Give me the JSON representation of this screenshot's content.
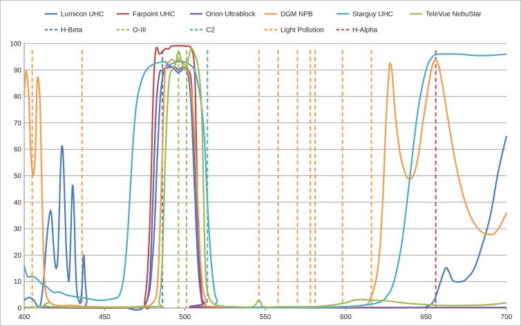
{
  "chart_data": {
    "type": "line",
    "title": "",
    "xlabel": "",
    "ylabel": "",
    "xlim": [
      400,
      700
    ],
    "ylim": [
      0,
      100
    ],
    "x_ticks": [
      "400",
      "450",
      "500",
      "550",
      "600",
      "650",
      "700"
    ],
    "y_ticks": [
      "0",
      "10",
      "20",
      "30",
      "40",
      "50",
      "60",
      "70",
      "80",
      "90",
      "100"
    ],
    "grid": "horizontal",
    "legend_position": "top",
    "series": [
      {
        "name": "Lumicon UHC",
        "color": "#4a7ebb",
        "dash": "solid",
        "points": [
          [
            400,
            3
          ],
          [
            403,
            4
          ],
          [
            406,
            3
          ],
          [
            408,
            1
          ],
          [
            410,
            1
          ],
          [
            412,
            10
          ],
          [
            414,
            26
          ],
          [
            416,
            36
          ],
          [
            417,
            35
          ],
          [
            418,
            26
          ],
          [
            419,
            18
          ],
          [
            420,
            15
          ],
          [
            421,
            20
          ],
          [
            422,
            40
          ],
          [
            423,
            58
          ],
          [
            424,
            60
          ],
          [
            425,
            45
          ],
          [
            426,
            25
          ],
          [
            427,
            14
          ],
          [
            428,
            11
          ],
          [
            429,
            28
          ],
          [
            430,
            46
          ],
          [
            431,
            38
          ],
          [
            432,
            15
          ],
          [
            433,
            5
          ],
          [
            434,
            3
          ],
          [
            435,
            2
          ],
          [
            436,
            8
          ],
          [
            437,
            20
          ],
          [
            438,
            10
          ],
          [
            439,
            3
          ],
          [
            440,
            0.5
          ],
          [
            460,
            0.3
          ],
          [
            475,
            1
          ],
          [
            480,
            20
          ],
          [
            483,
            60
          ],
          [
            485,
            82
          ],
          [
            488,
            91
          ],
          [
            492,
            91
          ],
          [
            496,
            89
          ],
          [
            500,
            91
          ],
          [
            502,
            88
          ],
          [
            504,
            75
          ],
          [
            506,
            45
          ],
          [
            508,
            18
          ],
          [
            510,
            5
          ],
          [
            513,
            1
          ],
          [
            520,
            0.2
          ],
          [
            640,
            0.2
          ],
          [
            650,
            0.5
          ],
          [
            655,
            3
          ],
          [
            659,
            10
          ],
          [
            662,
            15
          ],
          [
            664,
            14
          ],
          [
            666,
            11
          ],
          [
            668,
            10
          ],
          [
            672,
            10
          ],
          [
            675,
            11
          ],
          [
            680,
            15
          ],
          [
            685,
            24
          ],
          [
            690,
            35
          ],
          [
            695,
            52
          ],
          [
            700,
            65
          ]
        ]
      },
      {
        "name": "Farpoint UHC",
        "color": "#be4b48",
        "dash": "solid",
        "points": [
          [
            400,
            0.2
          ],
          [
            470,
            0.2
          ],
          [
            475,
            3
          ],
          [
            478,
            30
          ],
          [
            480,
            75
          ],
          [
            481,
            92
          ],
          [
            482,
            98
          ],
          [
            483,
            98
          ],
          [
            484,
            96
          ],
          [
            486,
            97
          ],
          [
            488,
            98
          ],
          [
            490,
            98
          ],
          [
            492,
            99
          ],
          [
            500,
            99
          ],
          [
            504,
            98
          ],
          [
            506,
            90
          ],
          [
            507,
            65
          ],
          [
            508,
            35
          ],
          [
            509,
            15
          ],
          [
            510,
            5
          ],
          [
            512,
            1
          ],
          [
            520,
            0.2
          ],
          [
            700,
            0.2
          ]
        ]
      },
      {
        "name": "Orion Ultrablock",
        "color": "#7e5ca0",
        "dash": "solid",
        "points": [
          [
            400,
            0.2
          ],
          [
            470,
            0.2
          ],
          [
            475,
            1
          ],
          [
            478,
            10
          ],
          [
            480,
            40
          ],
          [
            482,
            75
          ],
          [
            484,
            88
          ],
          [
            486,
            90
          ],
          [
            490,
            91
          ],
          [
            494,
            91
          ],
          [
            496,
            90
          ],
          [
            498,
            91
          ],
          [
            500,
            91
          ],
          [
            502,
            90
          ],
          [
            504,
            85
          ],
          [
            506,
            60
          ],
          [
            508,
            30
          ],
          [
            510,
            8
          ],
          [
            512,
            2
          ],
          [
            520,
            0.2
          ],
          [
            700,
            0.2
          ]
        ]
      },
      {
        "name": "DGM NPB",
        "color": "#f39b4a",
        "dash": "solid",
        "points": [
          [
            400,
            80
          ],
          [
            401,
            89
          ],
          [
            402,
            87
          ],
          [
            403,
            78
          ],
          [
            404,
            60
          ],
          [
            405,
            52
          ],
          [
            406,
            51
          ],
          [
            407,
            60
          ],
          [
            408,
            84
          ],
          [
            409,
            86
          ],
          [
            410,
            75
          ],
          [
            411,
            45
          ],
          [
            412,
            20
          ],
          [
            413,
            8
          ],
          [
            415,
            3
          ],
          [
            420,
            1
          ],
          [
            430,
            1
          ],
          [
            440,
            0.5
          ],
          [
            470,
            0.5
          ],
          [
            480,
            2
          ],
          [
            483,
            10
          ],
          [
            485,
            40
          ],
          [
            487,
            80
          ],
          [
            488,
            91
          ],
          [
            490,
            93
          ],
          [
            492,
            94
          ],
          [
            494,
            93
          ],
          [
            496,
            94
          ],
          [
            498,
            93
          ],
          [
            500,
            92
          ],
          [
            502,
            90
          ],
          [
            505,
            75
          ],
          [
            508,
            40
          ],
          [
            510,
            15
          ],
          [
            513,
            3
          ],
          [
            520,
            0.5
          ],
          [
            600,
            0.5
          ],
          [
            610,
            1
          ],
          [
            615,
            3
          ],
          [
            620,
            15
          ],
          [
            623,
            40
          ],
          [
            625,
            70
          ],
          [
            627,
            90
          ],
          [
            628,
            92
          ],
          [
            629,
            88
          ],
          [
            631,
            72
          ],
          [
            634,
            58
          ],
          [
            637,
            51
          ],
          [
            639,
            49
          ],
          [
            642,
            50
          ],
          [
            645,
            57
          ],
          [
            648,
            70
          ],
          [
            651,
            82
          ],
          [
            654,
            92
          ],
          [
            657,
            93
          ],
          [
            660,
            85
          ],
          [
            664,
            70
          ],
          [
            668,
            56
          ],
          [
            672,
            45
          ],
          [
            676,
            37
          ],
          [
            680,
            32
          ],
          [
            684,
            29
          ],
          [
            688,
            28
          ],
          [
            692,
            28
          ],
          [
            696,
            31
          ],
          [
            700,
            36
          ]
        ]
      },
      {
        "name": "Starguy UHC",
        "color": "#4bacc6",
        "dash": "solid",
        "points": [
          [
            400,
            16
          ],
          [
            402,
            12
          ],
          [
            405,
            12
          ],
          [
            408,
            11
          ],
          [
            411,
            9
          ],
          [
            414,
            8
          ],
          [
            418,
            6
          ],
          [
            422,
            6
          ],
          [
            426,
            5
          ],
          [
            430,
            4.5
          ],
          [
            435,
            4
          ],
          [
            440,
            3.5
          ],
          [
            445,
            3
          ],
          [
            450,
            3
          ],
          [
            455,
            3.5
          ],
          [
            458,
            4
          ],
          [
            460,
            6
          ],
          [
            462,
            12
          ],
          [
            464,
            25
          ],
          [
            466,
            45
          ],
          [
            468,
            65
          ],
          [
            470,
            78
          ],
          [
            473,
            86
          ],
          [
            476,
            90
          ],
          [
            480,
            92
          ],
          [
            485,
            93
          ],
          [
            488,
            93
          ],
          [
            490,
            92
          ],
          [
            495,
            93
          ],
          [
            500,
            93
          ],
          [
            503,
            92
          ],
          [
            506,
            90
          ],
          [
            508,
            85
          ],
          [
            510,
            78
          ],
          [
            512,
            65
          ],
          [
            514,
            40
          ],
          [
            516,
            20
          ],
          [
            518,
            8
          ],
          [
            520,
            3
          ],
          [
            525,
            0.5
          ],
          [
            580,
            0.2
          ],
          [
            590,
            0.2
          ],
          [
            600,
            0.5
          ],
          [
            610,
            1
          ],
          [
            620,
            2
          ],
          [
            625,
            4
          ],
          [
            630,
            10
          ],
          [
            635,
            25
          ],
          [
            640,
            50
          ],
          [
            645,
            75
          ],
          [
            650,
            90
          ],
          [
            654,
            95
          ],
          [
            658,
            96
          ],
          [
            662,
            96
          ],
          [
            670,
            96
          ],
          [
            680,
            95.5
          ],
          [
            690,
            95.5
          ],
          [
            700,
            96
          ]
        ]
      },
      {
        "name": "TeleVue NebuStar",
        "color": "#9bbb59",
        "dash": "solid",
        "points": [
          [
            400,
            0.3
          ],
          [
            410,
            0.3
          ],
          [
            415,
            2
          ],
          [
            418,
            0.5
          ],
          [
            480,
            0.5
          ],
          [
            484,
            3
          ],
          [
            486,
            20
          ],
          [
            488,
            60
          ],
          [
            490,
            85
          ],
          [
            492,
            90
          ],
          [
            494,
            92
          ],
          [
            496,
            97
          ],
          [
            498,
            93
          ],
          [
            500,
            90
          ],
          [
            502,
            94
          ],
          [
            504,
            98
          ],
          [
            506,
            96
          ],
          [
            508,
            92
          ],
          [
            510,
            80
          ],
          [
            511,
            60
          ],
          [
            512,
            30
          ],
          [
            513,
            12
          ],
          [
            515,
            4
          ],
          [
            520,
            1
          ],
          [
            530,
            0.5
          ],
          [
            542,
            0.5
          ],
          [
            545,
            2.5
          ],
          [
            547,
            2.5
          ],
          [
            549,
            0.5
          ],
          [
            560,
            0.5
          ],
          [
            580,
            0.5
          ],
          [
            590,
            1
          ],
          [
            600,
            2
          ],
          [
            605,
            3
          ],
          [
            610,
            3.2
          ],
          [
            615,
            3
          ],
          [
            625,
            2.8
          ],
          [
            635,
            2
          ],
          [
            645,
            1.5
          ],
          [
            660,
            1
          ],
          [
            675,
            1
          ],
          [
            690,
            1.3
          ],
          [
            700,
            2
          ]
        ]
      }
    ],
    "reference_lines": [
      {
        "name": "H-Beta",
        "color": "#4a7ebb",
        "x": [
          486
        ]
      },
      {
        "name": "O-III",
        "color": "#9bbb59",
        "x": [
          496,
          501
        ]
      },
      {
        "name": "C2",
        "color": "#4bacc6",
        "x": [
          514
        ]
      },
      {
        "name": "Light Pollution",
        "color": "#f39b4a",
        "x": [
          405,
          436,
          546,
          558,
          570,
          578,
          581,
          598,
          616
        ]
      },
      {
        "name": "H-Alpha",
        "color": "#be4b48",
        "x": [
          656
        ]
      }
    ]
  }
}
